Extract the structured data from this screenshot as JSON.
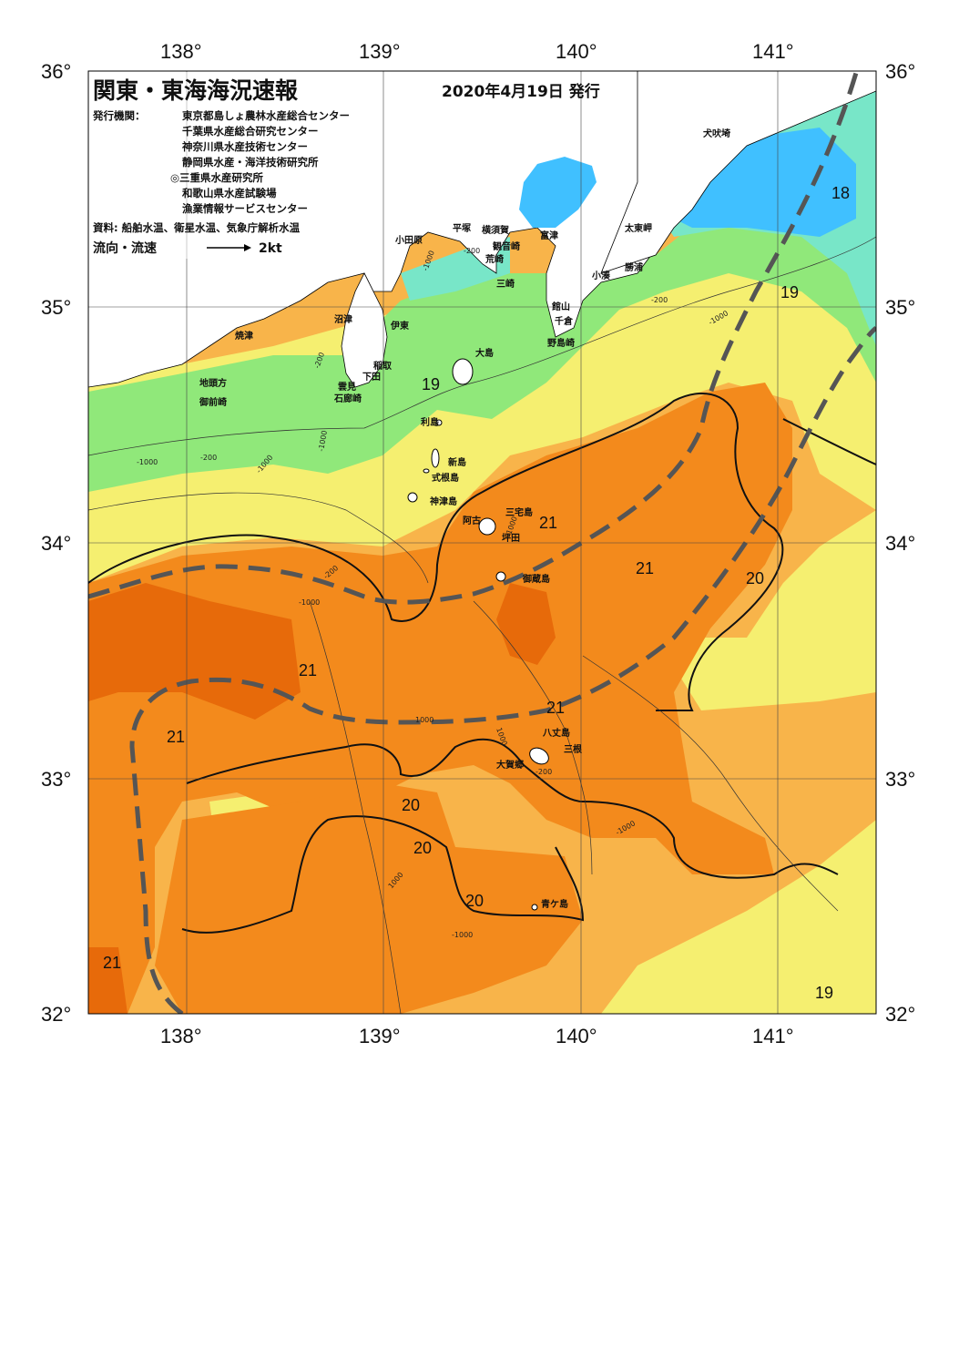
{
  "header": {
    "title": "関東・東海海況速報",
    "date": "2020年4月19日 発行"
  },
  "issuers": {
    "label": "発行機関：",
    "lines": [
      "東京都島しょ農林水産総合センター",
      "千葉県水産総合研究センター",
      "神奈川県水産技術センター",
      "静岡県水産・海洋技術研究所",
      "◎三重県水産研究所",
      "和歌山県水産試験場",
      "漁業情報サービスセンター"
    ]
  },
  "sources": "資料: 船舶水温、衛星水温、気象庁解析水温",
  "legend": {
    "label": "流向・流速",
    "speed": "2kt"
  },
  "axes": {
    "longitudes": [
      "138°",
      "139°",
      "140°",
      "141°"
    ],
    "latitudes": [
      "36°",
      "35°",
      "34°",
      "33°",
      "32°"
    ]
  },
  "places": {
    "inubosaki": "犬吠埼",
    "taitomisaki": "太東岬",
    "katsuura": "勝浦",
    "kominato": "小湊",
    "futtsu": "富津",
    "yokosuka": "横須賀",
    "kannonzaki": "観音崎",
    "arasaki": "荒崎",
    "misaki": "三崎",
    "hiratsuka": "平塚",
    "odawara": "小田原",
    "tateyama": "館山",
    "chikura": "千倉",
    "nojimazaki": "野島崎",
    "numazu": "沼津",
    "ito": "伊東",
    "yaizu": "焼津",
    "inatori": "稲取",
    "shimoda": "下田",
    "kumomi": "雲見",
    "irozaki": "石廊崎",
    "jitogata": "地頭方",
    "omaezaki": "御前崎",
    "oshima": "大島",
    "toshima": "利島",
    "niijima": "新島",
    "shikinejima": "式根島",
    "kozushima": "神津島",
    "miyakejima": "三宅島",
    "ako": "阿古",
    "tsubota": "坪田",
    "mikurajima": "御蔵島",
    "hachijojima": "八丈島",
    "mitsune": "三根",
    "okago": "大賀郷",
    "aogashima": "青ケ島"
  },
  "temperature_labels": [
    "18",
    "19",
    "19",
    "19",
    "21",
    "21",
    "20",
    "21",
    "21",
    "21",
    "20",
    "20",
    "20",
    "21",
    "19"
  ],
  "depth_labels": [
    "-200",
    "-1000",
    "-1000",
    "-200",
    "-1000",
    "-200",
    "-1000",
    "-200",
    "-1000",
    "-200",
    "-1000",
    "1000",
    "1000",
    "-1000",
    "1000",
    "-1000",
    "-1000",
    "-200"
  ],
  "colors": {
    "water_16": "#40c0ff",
    "water_17": "#78e6c8",
    "water_18": "#90e87a",
    "water_19": "#f5ef70",
    "water_20": "#f8b44a",
    "water_21": "#f38a1c",
    "water_22": "#e76a0a",
    "current_axis": "#555555"
  }
}
